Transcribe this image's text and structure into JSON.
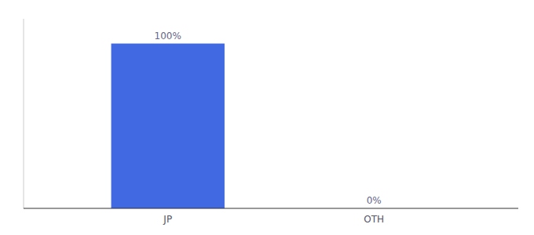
{
  "chart_data": {
    "type": "bar",
    "categories": [
      "JP",
      "OTH"
    ],
    "values": [
      100,
      0
    ],
    "value_labels": [
      "100%",
      "0%"
    ],
    "color": "#4169e1",
    "ylim": [
      0,
      115
    ],
    "data_labels": true,
    "tick_labels": "x",
    "grid": false
  }
}
